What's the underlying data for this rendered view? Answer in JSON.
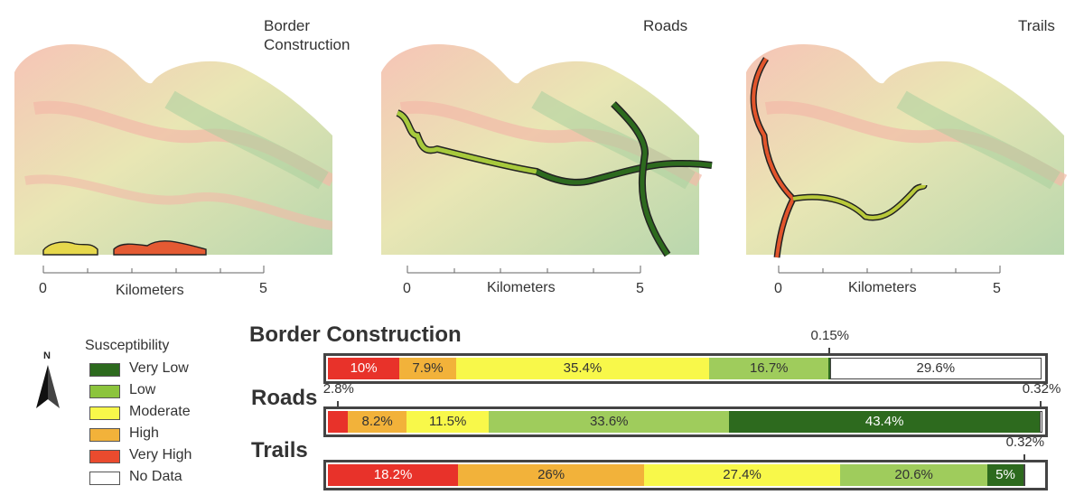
{
  "maps": [
    {
      "title": "Border\nConstruction",
      "scale_start": "0",
      "scale_unit": "Kilometers",
      "scale_end": "5"
    },
    {
      "title": "Roads",
      "scale_start": "0",
      "scale_unit": "Kilometers",
      "scale_end": "5"
    },
    {
      "title": "Trails",
      "scale_start": "0",
      "scale_unit": "Kilometers",
      "scale_end": "5"
    }
  ],
  "legend": {
    "title": "Susceptibility",
    "north_label": "N",
    "items": [
      {
        "label": "Very Low",
        "color": "#2d6a1e"
      },
      {
        "label": "Low",
        "color": "#8cc43c"
      },
      {
        "label": "Moderate",
        "color": "#f8f84a"
      },
      {
        "label": "High",
        "color": "#f2b23a"
      },
      {
        "label": "Very High",
        "color": "#ea4b2e"
      },
      {
        "label": "No Data",
        "color": "#ffffff"
      }
    ]
  },
  "chart_data": {
    "type": "bar",
    "orientation": "horizontal-stacked",
    "categories": [
      "Very High",
      "High",
      "Moderate",
      "Low",
      "Very Low",
      "No Data"
    ],
    "colors": [
      "#e8322a",
      "#f2b23a",
      "#f8f84a",
      "#9fcc5c",
      "#2d6a1e",
      "#ffffff"
    ],
    "series": [
      {
        "name": "Border Construction",
        "values": [
          10,
          7.9,
          35.4,
          16.7,
          0.15,
          29.6
        ],
        "labels": [
          "10%",
          "7.9%",
          "35.4%",
          "16.7%",
          "0.15%",
          "29.6%"
        ]
      },
      {
        "name": "Roads",
        "values": [
          2.8,
          8.2,
          11.5,
          33.6,
          43.4,
          0.32
        ],
        "labels": [
          "2.8%",
          "8.2%",
          "11.5%",
          "33.6%",
          "43.4%",
          "0.32%"
        ]
      },
      {
        "name": "Trails",
        "values": [
          18.2,
          26,
          27.4,
          20.6,
          5,
          0.32
        ],
        "labels": [
          "18.2%",
          "26%",
          "27.4%",
          "20.6%",
          "5%",
          "0.32%"
        ]
      }
    ]
  }
}
